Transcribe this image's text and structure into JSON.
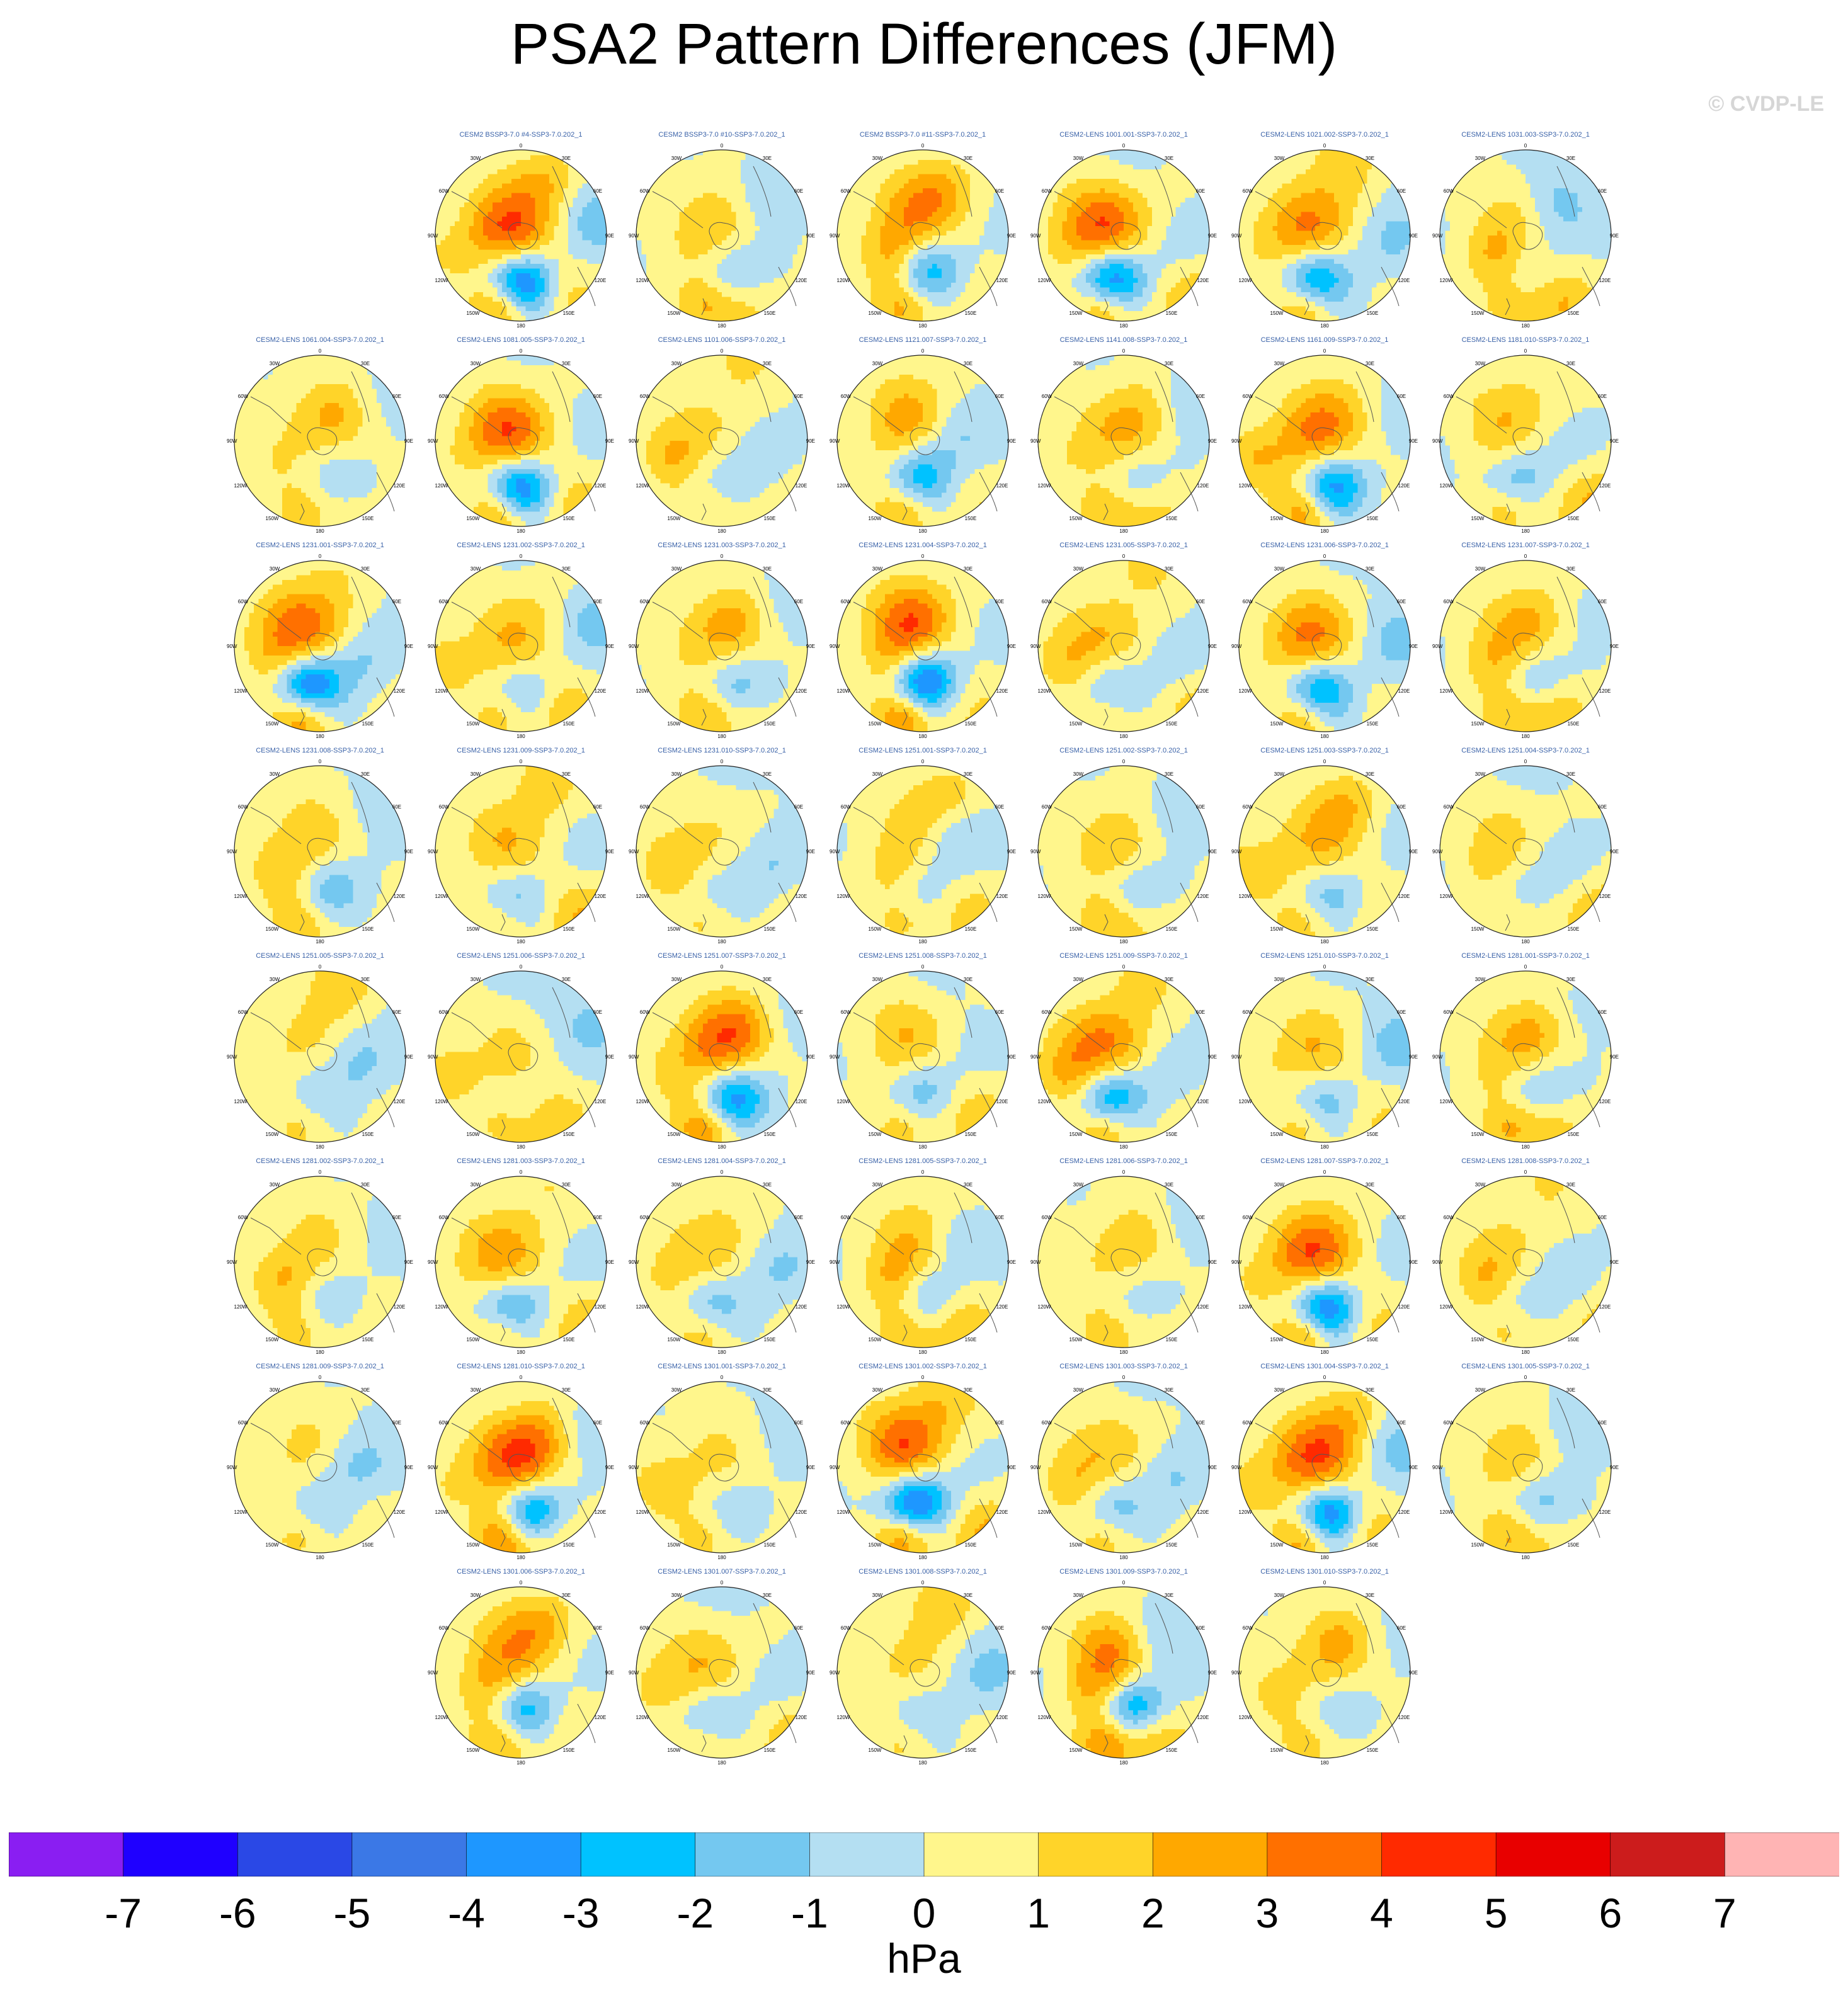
{
  "title": "PSA2 Pattern Differences (JFM)",
  "watermark": "© CVDP-LE",
  "panel_labels": {
    "top": "0",
    "bottom": "180",
    "left": "90W",
    "right": "90E",
    "ul1": "30W",
    "ul2": "60W",
    "ur1": "30E",
    "ur2": "60E",
    "ll1": "120W",
    "ll2": "150W",
    "lr1": "120E",
    "lr2": "150E"
  },
  "panels": [
    {
      "title": "CESM2 BSSP3-7.0 #4-SSP3-7.0.202_1",
      "amp": 5
    },
    {
      "title": "CESM2 BSSP3-7.0 #10-SSP3-7.0.202_1",
      "amp": 2
    },
    {
      "title": "CESM2 BSSP3-7.0 #11-SSP3-7.0.202_1",
      "amp": 3
    },
    {
      "title": "CESM2-LENS 1001.001-SSP3-7.0.202_1",
      "amp": 5
    },
    {
      "title": "CESM2-LENS 1021.002-SSP3-7.0.202_1",
      "amp": 4
    },
    {
      "title": "CESM2-LENS 1031.003-SSP3-7.0.202_1",
      "amp": 1
    },
    {
      "title": "CESM2-LENS 1061.004-SSP3-7.0.202_1",
      "amp": 1
    },
    {
      "title": "CESM2-LENS 1081.005-SSP3-7.0.202_1",
      "amp": 5
    },
    {
      "title": "CESM2-LENS 1101.006-SSP3-7.0.202_1",
      "amp": 1
    },
    {
      "title": "CESM2-LENS 1121.007-SSP3-7.0.202_1",
      "amp": 3
    },
    {
      "title": "CESM2-LENS 1141.008-SSP3-7.0.202_1",
      "amp": 2
    },
    {
      "title": "CESM2-LENS 1161.009-SSP3-7.0.202_1",
      "amp": 4
    },
    {
      "title": "CESM2-LENS 1181.010-SSP3-7.0.202_1",
      "amp": 2
    },
    {
      "title": "CESM2-LENS 1231.001-SSP3-7.0.202_1",
      "amp": 5
    },
    {
      "title": "CESM2-LENS 1231.002-SSP3-7.0.202_1",
      "amp": 2
    },
    {
      "title": "CESM2-LENS 1231.003-SSP3-7.0.202_1",
      "amp": 2
    },
    {
      "title": "CESM2-LENS 1231.004-SSP3-7.0.202_1",
      "amp": 5
    },
    {
      "title": "CESM2-LENS 1231.005-SSP3-7.0.202_1",
      "amp": 2
    },
    {
      "title": "CESM2-LENS 1231.006-SSP3-7.0.202_1",
      "amp": 4
    },
    {
      "title": "CESM2-LENS 1231.007-SSP3-7.0.202_1",
      "amp": 2
    },
    {
      "title": "CESM2-LENS 1231.008-SSP3-7.0.202_1",
      "amp": 2
    },
    {
      "title": "CESM2-LENS 1231.009-SSP3-7.0.202_1",
      "amp": 2
    },
    {
      "title": "CESM2-LENS 1231.010-SSP3-7.0.202_1",
      "amp": 1
    },
    {
      "title": "CESM2-LENS 1251.001-SSP3-7.0.202_1",
      "amp": 1
    },
    {
      "title": "CESM2-LENS 1251.002-SSP3-7.0.202_1",
      "amp": 2
    },
    {
      "title": "CESM2-LENS 1251.003-SSP3-7.0.202_1",
      "amp": 2
    },
    {
      "title": "CESM2-LENS 1251.004-SSP3-7.0.202_1",
      "amp": 1
    },
    {
      "title": "CESM2-LENS 1251.005-SSP3-7.0.202_1",
      "amp": 1
    },
    {
      "title": "CESM2-LENS 1251.006-SSP3-7.0.202_1",
      "amp": 1
    },
    {
      "title": "CESM2-LENS 1251.007-SSP3-7.0.202_1",
      "amp": 4
    },
    {
      "title": "CESM2-LENS 1251.008-SSP3-7.0.202_1",
      "amp": 2
    },
    {
      "title": "CESM2-LENS 1251.009-SSP3-7.0.202_1",
      "amp": 4
    },
    {
      "title": "CESM2-LENS 1251.010-SSP3-7.0.202_1",
      "amp": 2
    },
    {
      "title": "CESM2-LENS 1281.001-SSP3-7.0.202_1",
      "amp": 2
    },
    {
      "title": "CESM2-LENS 1281.002-SSP3-7.0.202_1",
      "amp": 1
    },
    {
      "title": "CESM2-LENS 1281.003-SSP3-7.0.202_1",
      "amp": 3
    },
    {
      "title": "CESM2-LENS 1281.004-SSP3-7.0.202_1",
      "amp": 2
    },
    {
      "title": "CESM2-LENS 1281.005-SSP3-7.0.202_1",
      "amp": 2
    },
    {
      "title": "CESM2-LENS 1281.006-SSP3-7.0.202_1",
      "amp": 1
    },
    {
      "title": "CESM2-LENS 1281.007-SSP3-7.0.202_1",
      "amp": 5
    },
    {
      "title": "CESM2-LENS 1281.008-SSP3-7.0.202_1",
      "amp": 1
    },
    {
      "title": "CESM2-LENS 1281.009-SSP3-7.0.202_1",
      "amp": 1
    },
    {
      "title": "CESM2-LENS 1281.010-SSP3-7.0.202_1",
      "amp": 5
    },
    {
      "title": "CESM2-LENS 1301.001-SSP3-7.0.202_1",
      "amp": 1
    },
    {
      "title": "CESM2-LENS 1301.002-SSP3-7.0.202_1",
      "amp": 5
    },
    {
      "title": "CESM2-LENS 1301.003-SSP3-7.0.202_1",
      "amp": 2
    },
    {
      "title": "CESM2-LENS 1301.004-SSP3-7.0.202_1",
      "amp": 5
    },
    {
      "title": "CESM2-LENS 1301.005-SSP3-7.0.202_1",
      "amp": 2
    },
    {
      "title": "CESM2-LENS 1301.006-SSP3-7.0.202_1",
      "amp": 3
    },
    {
      "title": "CESM2-LENS 1301.007-SSP3-7.0.202_1",
      "amp": 2
    },
    {
      "title": "CESM2-LENS 1301.008-SSP3-7.0.202_1",
      "amp": 1
    },
    {
      "title": "CESM2-LENS 1301.009-SSP3-7.0.202_1",
      "amp": 4
    },
    {
      "title": "CESM2-LENS 1301.010-SSP3-7.0.202_1",
      "amp": 1
    }
  ],
  "colorbar": {
    "colors": [
      "#8a1ef2",
      "#1f00ff",
      "#2a48e6",
      "#3b78e6",
      "#1e97ff",
      "#00c2ff",
      "#74c8f0",
      "#b4dff2",
      "#fff68c",
      "#ffd429",
      "#ffa800",
      "#ff7000",
      "#ff2a00",
      "#e80000",
      "#cc1c1c",
      "#ffb4b4"
    ],
    "labels": [
      "-7",
      "-6",
      "-5",
      "-4",
      "-3",
      "-2",
      "-1",
      "0",
      "1",
      "2",
      "3",
      "4",
      "5",
      "6",
      "7"
    ],
    "units": "hPa"
  }
}
